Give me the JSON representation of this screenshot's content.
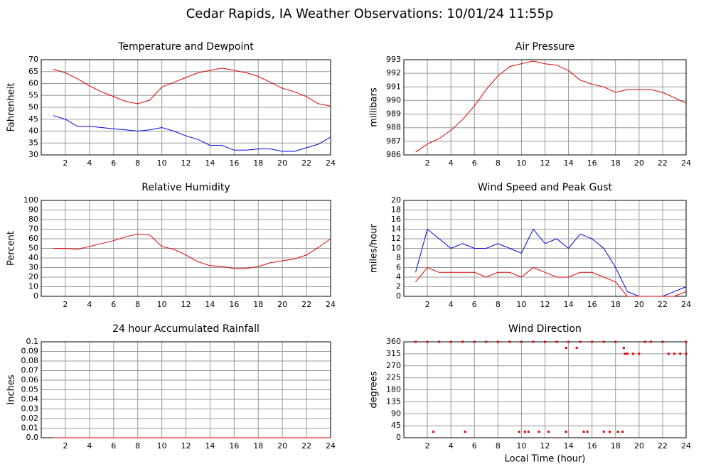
{
  "title": "Cedar Rapids, IA Weather Observations: 10/01/24 11:55p",
  "chart_data": [
    {
      "type": "line",
      "title": "Temperature and Dewpoint",
      "ylabel": "Fahrenheit",
      "x": [
        1,
        2,
        3,
        4,
        5,
        6,
        7,
        8,
        9,
        10,
        11,
        12,
        13,
        14,
        15,
        16,
        17,
        18,
        19,
        20,
        21,
        22,
        23,
        24
      ],
      "series": [
        {
          "color": "#e00000",
          "values": [
            66,
            64.5,
            62,
            59,
            56.5,
            54.5,
            52.5,
            51.5,
            53,
            58.5,
            60.5,
            62.5,
            64.5,
            65.5,
            66.5,
            65.5,
            64.5,
            63,
            60.5,
            58,
            56.5,
            54.5,
            51.5,
            50.5
          ]
        },
        {
          "color": "#0000e0",
          "values": [
            46.5,
            45,
            42,
            42,
            41.5,
            41,
            40.5,
            40,
            40.5,
            41.5,
            40,
            38,
            36.5,
            34,
            34,
            32,
            32,
            32.5,
            32.5,
            31.5,
            31.5,
            33,
            34.5,
            37.5
          ]
        }
      ],
      "xlim": [
        0,
        24
      ],
      "xticks": [
        2,
        4,
        6,
        8,
        10,
        12,
        14,
        16,
        18,
        20,
        22,
        24
      ],
      "ylim": [
        30,
        70
      ],
      "yticks": [
        30,
        35,
        40,
        45,
        50,
        55,
        60,
        65,
        70
      ],
      "grid": true
    },
    {
      "type": "line",
      "title": "Air Pressure",
      "ylabel": "millibars",
      "x": [
        1,
        2,
        3,
        4,
        5,
        6,
        7,
        8,
        9,
        10,
        11,
        12,
        13,
        14,
        15,
        16,
        17,
        18,
        19,
        20,
        21,
        22,
        23,
        24
      ],
      "series": [
        {
          "color": "#e00000",
          "values": [
            986.2,
            986.8,
            987.2,
            987.8,
            988.6,
            989.6,
            990.8,
            991.8,
            992.5,
            992.7,
            992.9,
            992.7,
            992.6,
            992.2,
            991.5,
            991.2,
            991,
            990.6,
            990.8,
            990.8,
            990.8,
            990.6,
            990.2,
            989.8
          ]
        }
      ],
      "xlim": [
        0,
        24
      ],
      "xticks": [
        2,
        4,
        6,
        8,
        10,
        12,
        14,
        16,
        18,
        20,
        22,
        24
      ],
      "ylim": [
        986,
        993
      ],
      "yticks": [
        986,
        987,
        988,
        989,
        990,
        991,
        992,
        993
      ],
      "grid": true
    },
    {
      "type": "line",
      "title": "Relative Humidity",
      "ylabel": "Percent",
      "x": [
        1,
        2,
        3,
        4,
        5,
        6,
        7,
        8,
        9,
        10,
        11,
        12,
        13,
        14,
        15,
        16,
        17,
        18,
        19,
        20,
        21,
        22,
        23,
        24
      ],
      "series": [
        {
          "color": "#e00000",
          "values": [
            50,
            50,
            49,
            52,
            55,
            58,
            62,
            65,
            64,
            52,
            49,
            43,
            36,
            32,
            31,
            29,
            29,
            31,
            35,
            37,
            39,
            43,
            51,
            60
          ]
        }
      ],
      "xlim": [
        0,
        24
      ],
      "xticks": [
        2,
        4,
        6,
        8,
        10,
        12,
        14,
        16,
        18,
        20,
        22,
        24
      ],
      "ylim": [
        0,
        100
      ],
      "yticks": [
        0,
        10,
        20,
        30,
        40,
        50,
        60,
        70,
        80,
        90,
        100
      ],
      "grid": true
    },
    {
      "type": "line",
      "title": "Wind Speed and Peak Gust",
      "ylabel": "miles/hour",
      "x": [
        1,
        2,
        3,
        4,
        5,
        6,
        7,
        8,
        9,
        10,
        11,
        12,
        13,
        14,
        15,
        16,
        17,
        18,
        19,
        20,
        21,
        22,
        23,
        24
      ],
      "series": [
        {
          "color": "#0000e0",
          "values": [
            5,
            14,
            12,
            10,
            11,
            10,
            10,
            11,
            10,
            9,
            14,
            11,
            12,
            10,
            13,
            12,
            10,
            6,
            1,
            0,
            0,
            0,
            1,
            2
          ]
        },
        {
          "color": "#e00000",
          "values": [
            3,
            6,
            5,
            5,
            5,
            5,
            4,
            5,
            5,
            4,
            6,
            5,
            4,
            4,
            5,
            5,
            4,
            3,
            0,
            0,
            0,
            0,
            0,
            1
          ]
        }
      ],
      "xlim": [
        0,
        24
      ],
      "xticks": [
        2,
        4,
        6,
        8,
        10,
        12,
        14,
        16,
        18,
        20,
        22,
        24
      ],
      "ylim": [
        0,
        20
      ],
      "yticks": [
        0,
        2,
        4,
        6,
        8,
        10,
        12,
        14,
        16,
        18,
        20
      ],
      "grid": true
    },
    {
      "type": "line",
      "title": "24 hour Accumulated Rainfall",
      "ylabel": "Inches",
      "x": [
        1,
        2,
        3,
        4,
        5,
        6,
        7,
        8,
        9,
        10,
        11,
        12,
        13,
        14,
        15,
        16,
        17,
        18,
        19,
        20,
        21,
        22,
        23,
        24
      ],
      "series": [
        {
          "color": "#e00000",
          "values": [
            0,
            0,
            0,
            0,
            0,
            0,
            0,
            0,
            0,
            0,
            0,
            0,
            0,
            0,
            0,
            0,
            0,
            0,
            0,
            0,
            0,
            0,
            0,
            0
          ]
        }
      ],
      "xlim": [
        0,
        24
      ],
      "xticks": [
        2,
        4,
        6,
        8,
        10,
        12,
        14,
        16,
        18,
        20,
        22,
        24
      ],
      "ylim": [
        0,
        0.1
      ],
      "yticks": [
        {
          "value": 0,
          "label": "0.0"
        },
        0.01,
        0.02,
        0.03,
        0.04,
        0.05,
        0.06,
        0.07,
        0.08,
        0.09,
        0.1
      ],
      "grid": true
    },
    {
      "type": "scatter",
      "title": "Wind Direction",
      "ylabel": "degrees",
      "xlabel": "Local Time (hour)",
      "x": [
        1,
        2,
        2.5,
        3,
        4,
        5,
        5.2,
        6,
        7,
        8,
        9,
        9.8,
        10,
        10.3,
        10.6,
        11,
        11.5,
        12,
        12.3,
        13,
        13.8,
        13.8,
        14,
        14.7,
        15,
        15.3,
        15.6,
        16,
        17,
        17,
        17.5,
        18,
        18.2,
        18.6,
        18.7,
        18.8,
        19,
        19.5,
        20,
        20.5,
        21,
        22,
        22.5,
        23,
        23.5,
        24,
        24
      ],
      "series": [
        {
          "color": "#e00000",
          "values": [
            360,
            360,
            22.5,
            360,
            360,
            360,
            22.5,
            360,
            360,
            360,
            360,
            22.5,
            360,
            22.5,
            22.5,
            360,
            22.5,
            360,
            22.5,
            360,
            337.5,
            22.5,
            360,
            337.5,
            360,
            22.5,
            22.5,
            360,
            360,
            22.5,
            22.5,
            360,
            22.5,
            22.5,
            337.5,
            315,
            315,
            315,
            315,
            360,
            360,
            360,
            315,
            315,
            315,
            315,
            360
          ]
        }
      ],
      "xlim": [
        0,
        24
      ],
      "xticks": [
        2,
        4,
        6,
        8,
        10,
        12,
        14,
        16,
        18,
        20,
        22,
        24
      ],
      "ylim": [
        0,
        360
      ],
      "yticks": [
        0,
        45,
        90,
        135,
        180,
        225,
        270,
        315,
        360
      ],
      "grid": true
    }
  ]
}
